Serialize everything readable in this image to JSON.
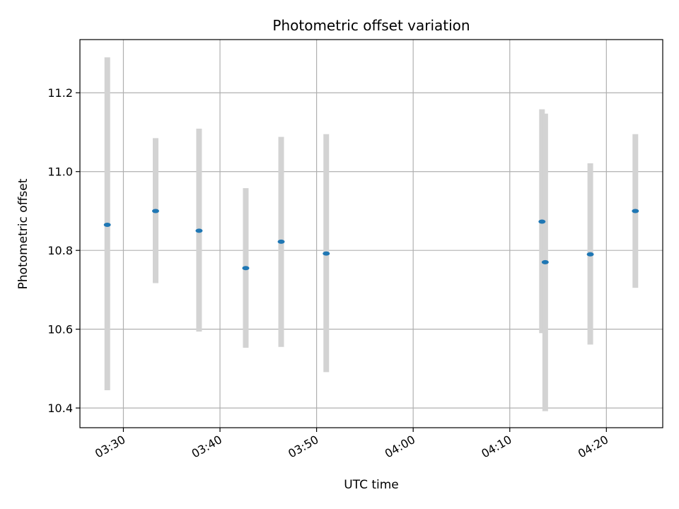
{
  "chart_data": {
    "type": "scatter",
    "title": "Photometric offset variation",
    "xlabel": "UTC time",
    "ylabel": "Photometric offset",
    "x_axis_type": "time",
    "xlim": [
      "03:25:30",
      "04:25:50"
    ],
    "ylim": [
      10.35,
      11.335
    ],
    "grid": true,
    "x_ticks": [
      "03:30",
      "03:40",
      "03:50",
      "04:00",
      "04:10",
      "04:20"
    ],
    "y_ticks": [
      10.4,
      10.6,
      10.8,
      11.0,
      11.2
    ],
    "y_tick_labels": [
      "10.4",
      "10.6",
      "10.8",
      "11.0",
      "11.2"
    ],
    "colors": {
      "points": "#1f77b4",
      "errorbars": "#d3d3d3",
      "grid": "#b0b0b0"
    },
    "points": [
      {
        "x": "03:28:20",
        "y": 10.865,
        "ylow": 10.445,
        "yhigh": 11.29
      },
      {
        "x": "03:33:20",
        "y": 10.9,
        "ylow": 10.717,
        "yhigh": 11.085
      },
      {
        "x": "03:37:50",
        "y": 10.85,
        "ylow": 10.594,
        "yhigh": 11.109
      },
      {
        "x": "03:42:40",
        "y": 10.755,
        "ylow": 10.553,
        "yhigh": 10.958
      },
      {
        "x": "03:46:20",
        "y": 10.822,
        "ylow": 10.555,
        "yhigh": 11.088
      },
      {
        "x": "03:51:00",
        "y": 10.792,
        "ylow": 10.491,
        "yhigh": 11.095
      },
      {
        "x": "04:13:20",
        "y": 10.873,
        "ylow": 10.59,
        "yhigh": 11.158
      },
      {
        "x": "04:13:40",
        "y": 10.77,
        "ylow": 10.392,
        "yhigh": 11.147
      },
      {
        "x": "04:18:20",
        "y": 10.79,
        "ylow": 10.561,
        "yhigh": 11.021
      },
      {
        "x": "04:23:00",
        "y": 10.9,
        "ylow": 10.705,
        "yhigh": 11.095
      }
    ]
  }
}
